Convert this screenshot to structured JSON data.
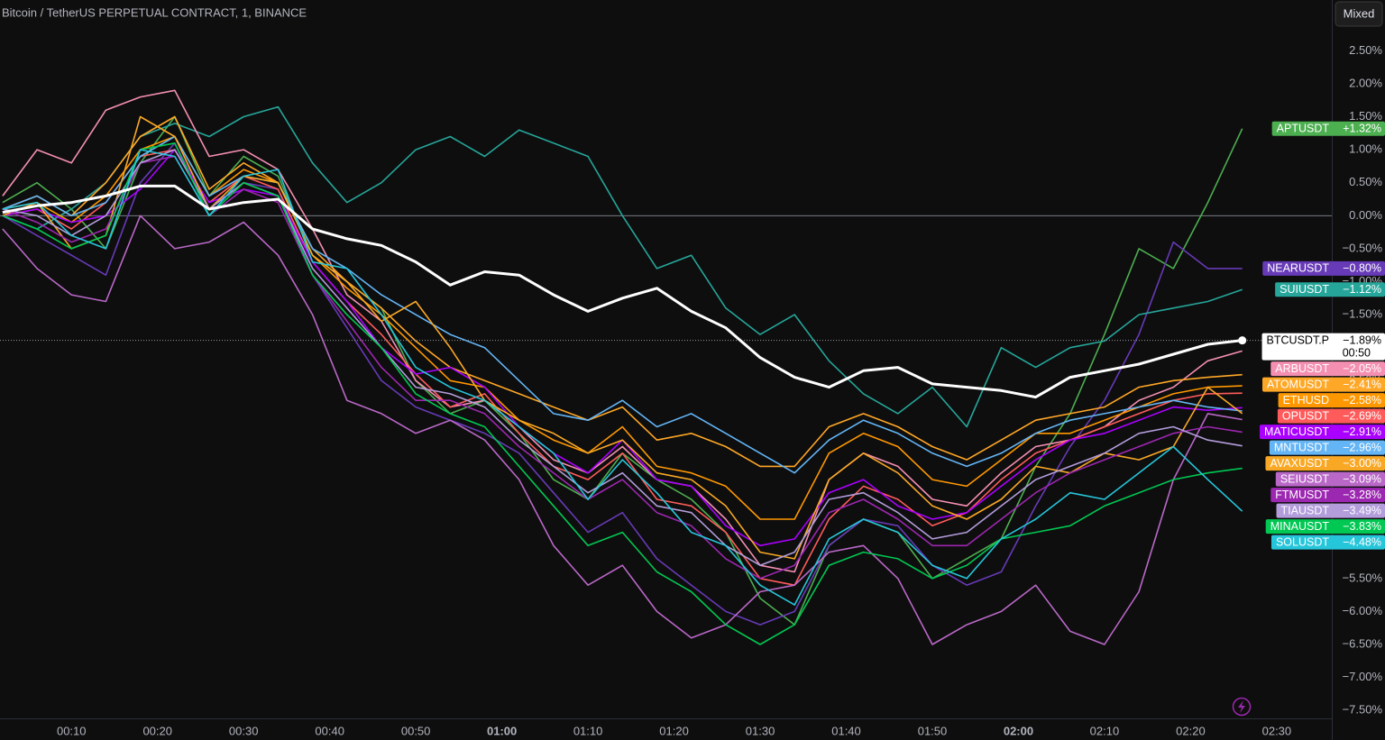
{
  "chart_data": {
    "type": "line",
    "title": "Bitcoin / TetherUS PERPETUAL CONTRACT, 1, BINANCE",
    "scale_mode": "Mixed",
    "x": [
      2,
      6,
      10,
      14,
      18,
      22,
      26,
      30,
      34,
      38,
      42,
      46,
      50,
      54,
      58,
      62,
      66,
      70,
      74,
      78,
      82,
      86,
      90,
      94,
      98,
      102,
      106,
      110,
      114,
      118,
      122,
      126,
      130,
      134,
      138,
      142,
      146
    ],
    "xlim": [
      1.7,
      156.4
    ],
    "xticks": [
      {
        "value": 10,
        "label": "00:10"
      },
      {
        "value": 20,
        "label": "00:20"
      },
      {
        "value": 30,
        "label": "00:30"
      },
      {
        "value": 40,
        "label": "00:40"
      },
      {
        "value": 50,
        "label": "00:50"
      },
      {
        "value": 60,
        "label": "01:00"
      },
      {
        "value": 70,
        "label": "01:10"
      },
      {
        "value": 80,
        "label": "01:20"
      },
      {
        "value": 90,
        "label": "01:30"
      },
      {
        "value": 100,
        "label": "01:40"
      },
      {
        "value": 110,
        "label": "01:50"
      },
      {
        "value": 120,
        "label": "02:00"
      },
      {
        "value": 130,
        "label": "02:10"
      },
      {
        "value": 140,
        "label": "02:20"
      },
      {
        "value": 150,
        "label": "02:30"
      }
    ],
    "ylim": [
      -7.62,
      3.27
    ],
    "yticks": [
      {
        "value": 2.5,
        "label": "2.50%"
      },
      {
        "value": 2,
        "label": "2.00%"
      },
      {
        "value": 1.5,
        "label": "1.50%"
      },
      {
        "value": 1,
        "label": "1.00%"
      },
      {
        "value": 0.5,
        "label": "0.50%"
      },
      {
        "value": 0,
        "label": "0.00%"
      },
      {
        "value": -0.5,
        "label": "−0.50%"
      },
      {
        "value": -1,
        "label": "−1.00%"
      },
      {
        "value": -1.5,
        "label": "−1.50%"
      },
      {
        "value": -2,
        "label": "−2.00%"
      },
      {
        "value": -2.5,
        "label": "−2.50%"
      },
      {
        "value": -3,
        "label": "−3.00%"
      },
      {
        "value": -3.5,
        "label": "−3.50%"
      },
      {
        "value": -4,
        "label": "−4.00%"
      },
      {
        "value": -4.5,
        "label": "−4.50%"
      },
      {
        "value": -5,
        "label": "−5.00%"
      },
      {
        "value": -5.5,
        "label": "−5.50%"
      },
      {
        "value": -6,
        "label": "−6.00%"
      },
      {
        "value": -6.5,
        "label": "−6.50%"
      },
      {
        "value": -7,
        "label": "−7.00%"
      },
      {
        "value": -7.5,
        "label": "−7.50%"
      }
    ],
    "grid": false,
    "zero_line": true,
    "series": [
      {
        "name": "APTUSDT",
        "color": "#4caf50",
        "last_value_label": "+1.32%",
        "values": [
          0.2,
          0.5,
          0.1,
          -0.5,
          0.8,
          1.5,
          0.3,
          0.9,
          0.6,
          -0.6,
          -1.0,
          -1.4,
          -2.5,
          -3.0,
          -2.8,
          -3.3,
          -4.0,
          -4.3,
          -3.6,
          -4.0,
          -4.3,
          -4.8,
          -5.8,
          -6.2,
          -5.0,
          -4.6,
          -4.8,
          -5.5,
          -5.2,
          -4.9,
          -3.8,
          -3.0,
          -1.8,
          -0.5,
          -0.8,
          0.2,
          1.32
        ]
      },
      {
        "name": "NEARUSDT",
        "color": "#673ab7",
        "last_value_label": "−0.80%",
        "values": [
          0.0,
          -0.3,
          -0.6,
          -0.9,
          0.5,
          1.1,
          0.1,
          0.5,
          0.4,
          -0.9,
          -1.7,
          -2.5,
          -2.9,
          -3.1,
          -3.3,
          -3.6,
          -4.2,
          -4.8,
          -4.5,
          -5.2,
          -5.6,
          -6.0,
          -6.2,
          -6.0,
          -5.0,
          -4.6,
          -4.7,
          -5.3,
          -5.6,
          -5.4,
          -4.4,
          -3.5,
          -2.8,
          -1.8,
          -0.4,
          -0.8,
          -0.8
        ]
      },
      {
        "name": "SUIUSDT",
        "color": "#26a69a",
        "last_value_label": "−1.12%",
        "values": [
          0.0,
          -0.2,
          0.1,
          0.5,
          1.2,
          1.4,
          1.2,
          1.5,
          1.65,
          0.8,
          0.2,
          0.5,
          1.0,
          1.2,
          0.9,
          1.3,
          1.1,
          0.9,
          0.0,
          -0.8,
          -0.6,
          -1.4,
          -1.8,
          -1.5,
          -2.2,
          -2.7,
          -3.0,
          -2.6,
          -3.2,
          -2.0,
          -2.3,
          -2.0,
          -1.9,
          -1.5,
          -1.4,
          -1.3,
          -1.12
        ]
      },
      {
        "name": "ARBUSDT",
        "color": "#f48fb1",
        "last_value_label": "−2.05%",
        "values": [
          0.3,
          1.0,
          0.8,
          1.6,
          1.8,
          1.9,
          0.9,
          1.0,
          0.7,
          -0.2,
          -1.2,
          -1.6,
          -2.5,
          -2.9,
          -2.8,
          -3.2,
          -3.7,
          -3.9,
          -3.5,
          -4.0,
          -4.1,
          -4.6,
          -5.3,
          -5.4,
          -4.0,
          -3.6,
          -3.8,
          -4.3,
          -4.4,
          -3.9,
          -3.5,
          -3.4,
          -3.2,
          -2.8,
          -2.6,
          -2.2,
          -2.05
        ]
      },
      {
        "name": "ATOMUSDT",
        "color": "#ffa726",
        "last_value_label": "−2.41%",
        "values": [
          0.1,
          0.3,
          0.0,
          0.5,
          1.2,
          1.5,
          0.4,
          0.8,
          0.5,
          -0.5,
          -1.0,
          -1.4,
          -1.9,
          -2.3,
          -2.5,
          -2.7,
          -2.9,
          -3.1,
          -2.9,
          -3.4,
          -3.3,
          -3.5,
          -3.8,
          -3.8,
          -3.2,
          -3.0,
          -3.2,
          -3.5,
          -3.7,
          -3.4,
          -3.1,
          -3.0,
          -2.9,
          -2.6,
          -2.5,
          -2.45,
          -2.41
        ]
      },
      {
        "name": "ETHUSD",
        "color": "#ff9800",
        "last_value_label": "−2.58%",
        "values": [
          0.1,
          0.2,
          -0.1,
          0.3,
          1.0,
          1.2,
          0.3,
          0.7,
          0.5,
          -0.6,
          -1.1,
          -1.5,
          -2.0,
          -2.5,
          -2.6,
          -3.1,
          -3.4,
          -3.6,
          -3.2,
          -3.8,
          -3.9,
          -4.1,
          -4.6,
          -4.6,
          -3.6,
          -3.3,
          -3.5,
          -4.0,
          -4.1,
          -3.7,
          -3.3,
          -3.3,
          -3.1,
          -2.9,
          -2.7,
          -2.6,
          -2.58
        ]
      },
      {
        "name": "OPUSDT",
        "color": "#ff5b5b",
        "last_value_label": "−2.69%",
        "values": [
          0.0,
          0.1,
          -0.2,
          0.2,
          0.9,
          1.0,
          0.2,
          0.6,
          0.4,
          -0.7,
          -1.3,
          -1.8,
          -2.4,
          -2.9,
          -2.7,
          -3.3,
          -3.8,
          -4.0,
          -3.6,
          -4.3,
          -4.4,
          -4.8,
          -5.5,
          -5.6,
          -4.6,
          -4.1,
          -4.3,
          -4.7,
          -4.5,
          -4.0,
          -3.6,
          -3.4,
          -3.2,
          -3.0,
          -2.8,
          -2.7,
          -2.69
        ]
      },
      {
        "name": "MATICUSDT",
        "color": "#aa00ff",
        "last_value_label": "−2.91%",
        "values": [
          0.0,
          0.1,
          -0.1,
          0.0,
          0.4,
          1.0,
          0.2,
          0.4,
          0.3,
          -0.7,
          -1.3,
          -2.0,
          -2.4,
          -2.3,
          -2.6,
          -3.2,
          -3.6,
          -3.9,
          -3.4,
          -4.0,
          -4.1,
          -4.7,
          -5.0,
          -4.9,
          -4.2,
          -4.0,
          -4.4,
          -4.6,
          -4.5,
          -4.1,
          -3.7,
          -3.4,
          -3.3,
          -3.1,
          -2.9,
          -2.95,
          -2.91
        ]
      },
      {
        "name": "MNTUSDT",
        "color": "#64b5f6",
        "last_value_label": "−2.96%",
        "values": [
          0.1,
          0.3,
          0.0,
          0.2,
          0.9,
          1.2,
          0.3,
          0.6,
          0.5,
          -0.5,
          -0.8,
          -1.2,
          -1.5,
          -1.8,
          -2.0,
          -2.5,
          -3.0,
          -3.1,
          -2.8,
          -3.2,
          -3.0,
          -3.3,
          -3.6,
          -3.9,
          -3.4,
          -3.1,
          -3.3,
          -3.6,
          -3.8,
          -3.6,
          -3.3,
          -3.1,
          -3.0,
          -2.9,
          -2.8,
          -2.9,
          -2.96
        ]
      },
      {
        "name": "AVAXUSDT",
        "color": "#f9a825",
        "last_value_label": "−3.00%",
        "values": [
          0.0,
          0.2,
          -0.5,
          -0.3,
          1.5,
          1.2,
          0.1,
          0.6,
          0.5,
          -0.6,
          -1.0,
          -1.6,
          -1.3,
          -2.0,
          -2.8,
          -3.1,
          -3.3,
          -3.6,
          -3.4,
          -3.9,
          -4.0,
          -4.4,
          -5.1,
          -5.2,
          -4.0,
          -3.6,
          -3.9,
          -4.4,
          -4.6,
          -4.3,
          -3.8,
          -3.9,
          -3.6,
          -3.7,
          -3.5,
          -2.6,
          -3.0
        ]
      },
      {
        "name": "SEIUSDT",
        "color": "#ba68c8",
        "last_value_label": "−3.09%",
        "values": [
          -0.2,
          -0.8,
          -1.2,
          -1.3,
          0.0,
          -0.5,
          -0.4,
          -0.1,
          -0.6,
          -1.5,
          -2.8,
          -3.0,
          -3.3,
          -3.1,
          -3.4,
          -4.0,
          -5.0,
          -5.6,
          -5.3,
          -6.0,
          -6.4,
          -6.2,
          -5.7,
          -5.6,
          -5.1,
          -5.0,
          -5.5,
          -6.5,
          -6.2,
          -6.0,
          -5.6,
          -6.3,
          -6.5,
          -5.7,
          -4.0,
          -3.0,
          -3.09
        ]
      },
      {
        "name": "FTMUSDT",
        "color": "#9c27b0",
        "last_value_label": "−3.28%",
        "values": [
          0.1,
          -0.1,
          -0.4,
          -0.2,
          0.8,
          0.9,
          0.0,
          0.4,
          0.2,
          -0.9,
          -1.6,
          -2.3,
          -2.8,
          -2.8,
          -3.0,
          -3.5,
          -3.9,
          -4.3,
          -4.0,
          -4.5,
          -4.7,
          -5.2,
          -5.5,
          -5.3,
          -4.5,
          -4.3,
          -4.6,
          -5.0,
          -5.0,
          -4.6,
          -4.2,
          -3.9,
          -3.7,
          -3.5,
          -3.3,
          -3.2,
          -3.28
        ]
      },
      {
        "name": "TIAUSDT",
        "color": "#b39ddb",
        "last_value_label": "−3.49%",
        "values": [
          0.1,
          0.0,
          -0.3,
          0.0,
          0.8,
          1.0,
          0.1,
          0.5,
          0.3,
          -0.8,
          -1.4,
          -2.0,
          -2.6,
          -2.7,
          -2.9,
          -3.4,
          -3.8,
          -4.2,
          -3.9,
          -4.4,
          -4.5,
          -5.0,
          -5.3,
          -5.1,
          -4.3,
          -4.2,
          -4.5,
          -4.9,
          -4.8,
          -4.4,
          -4.0,
          -3.8,
          -3.6,
          -3.3,
          -3.2,
          -3.4,
          -3.49
        ]
      },
      {
        "name": "MINAUSDT",
        "color": "#00c853",
        "last_value_label": "−3.83%",
        "values": [
          0.0,
          -0.2,
          -0.5,
          -0.3,
          1.0,
          1.1,
          0.0,
          0.5,
          0.3,
          -0.9,
          -1.5,
          -2.0,
          -2.7,
          -3.0,
          -3.2,
          -3.8,
          -4.4,
          -5.0,
          -4.8,
          -5.4,
          -5.7,
          -6.2,
          -6.5,
          -6.2,
          -5.3,
          -5.1,
          -5.2,
          -5.5,
          -5.3,
          -4.9,
          -4.8,
          -4.7,
          -4.4,
          -4.2,
          -4.0,
          -3.9,
          -3.83
        ]
      },
      {
        "name": "SOLUSDT",
        "color": "#26c6da",
        "last_value_label": "−4.48%",
        "values": [
          0.1,
          0.2,
          -0.3,
          -0.5,
          1.0,
          0.9,
          0.0,
          0.6,
          0.7,
          -0.7,
          -0.8,
          -1.5,
          -2.3,
          -2.6,
          -2.8,
          -3.2,
          -3.6,
          -4.3,
          -3.7,
          -4.2,
          -4.8,
          -5.0,
          -5.6,
          -5.9,
          -4.9,
          -4.6,
          -4.8,
          -5.3,
          -5.5,
          -4.9,
          -4.6,
          -4.2,
          -4.3,
          -3.9,
          -3.5,
          -4.0,
          -4.48
        ]
      },
      {
        "name": "BTCUSDT.P",
        "color": "#ffffff",
        "last_value_label": "−1.89%",
        "countdown": "00:50",
        "line_width": 3,
        "price_line": true,
        "end_marker": true,
        "values": [
          0.05,
          0.15,
          0.2,
          0.3,
          0.45,
          0.45,
          0.1,
          0.2,
          0.25,
          -0.2,
          -0.35,
          -0.45,
          -0.7,
          -1.05,
          -0.85,
          -0.9,
          -1.2,
          -1.45,
          -1.25,
          -1.1,
          -1.45,
          -1.7,
          -2.15,
          -2.45,
          -2.6,
          -2.35,
          -2.3,
          -2.55,
          -2.6,
          -2.65,
          -2.75,
          -2.45,
          -2.35,
          -2.25,
          -2.1,
          -1.95,
          -1.89
        ]
      }
    ]
  }
}
